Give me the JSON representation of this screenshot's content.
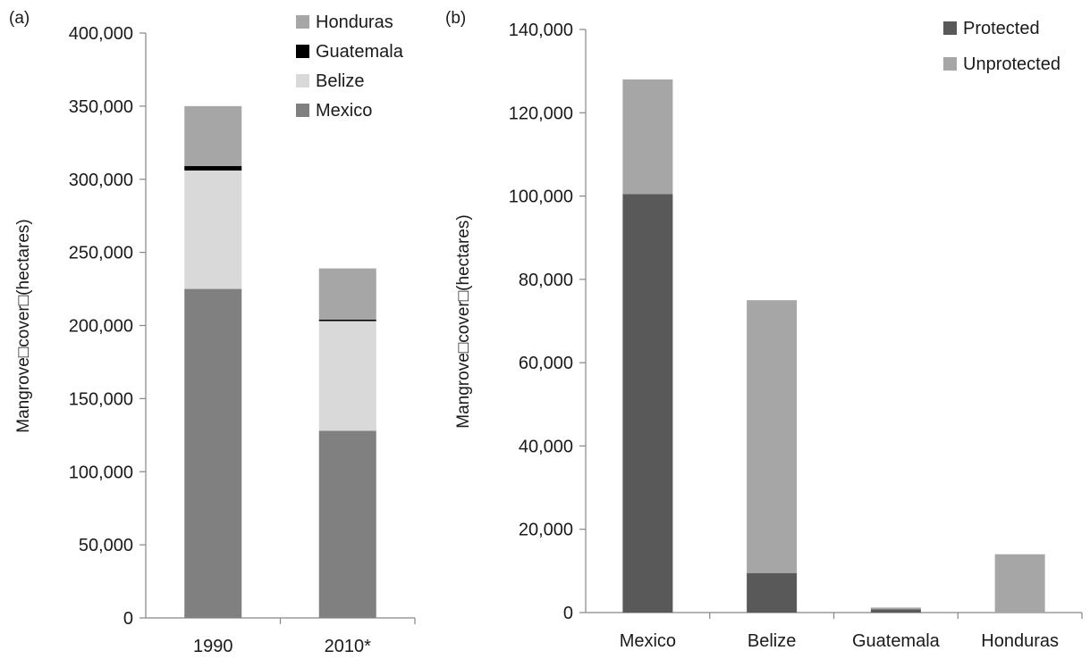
{
  "chart_data": [
    {
      "panel_label": "(a)",
      "type": "bar",
      "stacked": true,
      "categories": [
        "1990",
        "2010*"
      ],
      "series": [
        {
          "name": "Mexico",
          "color": "#808080",
          "values": [
            225000,
            128000
          ]
        },
        {
          "name": "Belize",
          "color": "#d9d9d9",
          "values": [
            81000,
            75000
          ]
        },
        {
          "name": "Guatemala",
          "color": "#000000",
          "values": [
            3000,
            1000
          ]
        },
        {
          "name": "Honduras",
          "color": "#a6a6a6",
          "values": [
            41000,
            35000
          ]
        }
      ],
      "legend_order": [
        "Honduras",
        "Guatemala",
        "Belize",
        "Mexico"
      ],
      "legend_position": "top-right",
      "ylabel": "Mangrove□cover□(hectares)",
      "ylim": [
        0,
        400000
      ],
      "yticks": [
        0,
        50000,
        100000,
        150000,
        200000,
        250000,
        300000,
        350000,
        400000
      ],
      "ytick_labels": [
        "0",
        "50,000",
        "100,000",
        "150,000",
        "200,000",
        "250,000",
        "300,000",
        "350,000",
        "400,000"
      ],
      "grid": false
    },
    {
      "panel_label": "(b)",
      "type": "bar",
      "stacked": true,
      "categories": [
        "Mexico",
        "Belize",
        "Guatemala",
        "Honduras"
      ],
      "series": [
        {
          "name": "Protected",
          "color": "#595959",
          "values": [
            100500,
            9500,
            800,
            0
          ]
        },
        {
          "name": "Unprotected",
          "color": "#a6a6a6",
          "values": [
            27500,
            65500,
            400,
            14000
          ]
        }
      ],
      "legend_order": [
        "Protected",
        "Unprotected"
      ],
      "legend_position": "top-right",
      "ylabel": "Mangrove□cover□(hectares)",
      "ylim": [
        0,
        140000
      ],
      "yticks": [
        0,
        20000,
        40000,
        60000,
        80000,
        100000,
        120000,
        140000
      ],
      "ytick_labels": [
        "0",
        "20,000",
        "40,000",
        "60,000",
        "80,000",
        "100,000",
        "120,000",
        "140,000"
      ],
      "grid": false
    }
  ]
}
